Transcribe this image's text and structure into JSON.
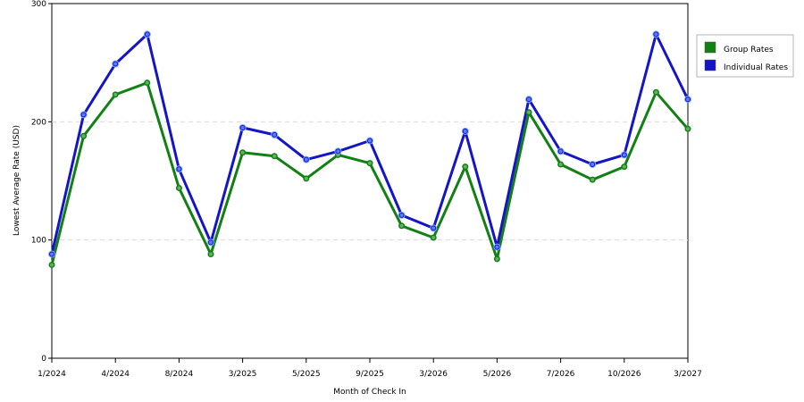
{
  "chart_data": {
    "type": "line",
    "xlabel": "Month of Check In",
    "ylabel": "Lowest Average Rate (USD)",
    "ylim": [
      0,
      300
    ],
    "yticks": [
      0,
      100,
      200,
      300
    ],
    "grid": "horizontal dashed",
    "legend_position": "top-right",
    "x_tick_labels": [
      "1/2024",
      "4/2024",
      "8/2024",
      "3/2025",
      "5/2025",
      "9/2025",
      "3/2026",
      "5/2026",
      "7/2026",
      "10/2026",
      "3/2027"
    ],
    "points_count": 21,
    "series": [
      {
        "name": "Group Rates",
        "color": "#138013",
        "values": [
          79,
          188,
          223,
          233,
          144,
          88,
          174,
          171,
          152,
          172,
          165,
          112,
          102,
          162,
          84,
          208,
          164,
          151,
          162,
          225,
          194
        ]
      },
      {
        "name": "Individual Rates",
        "color": "#1515c8",
        "values": [
          88,
          206,
          249,
          274,
          160,
          98,
          195,
          189,
          168,
          175,
          184,
          121,
          110,
          192,
          94,
          219,
          175,
          164,
          172,
          274,
          219
        ]
      }
    ]
  }
}
